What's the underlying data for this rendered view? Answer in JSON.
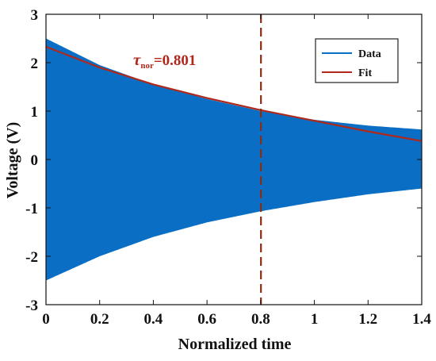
{
  "chart_data": {
    "type": "line",
    "title": "",
    "xlabel": "Normalized time",
    "ylabel": "Voltage (V)",
    "xlim": [
      0,
      1.4
    ],
    "ylim": [
      -3,
      3
    ],
    "x_ticks": [
      "0",
      "0.2",
      "0.4",
      "0.6",
      "0.8",
      "1",
      "1.2",
      "1.4"
    ],
    "y_ticks": [
      "-3",
      "-2",
      "-1",
      "0",
      "1",
      "2",
      "3"
    ],
    "grid": false,
    "legend_position": "top-right",
    "series": [
      {
        "name": "Data",
        "kind": "oscillating envelope",
        "color": "#0a6fc4",
        "x": [
          0,
          0.2,
          0.4,
          0.6,
          0.8,
          1.0,
          1.2,
          1.4
        ],
        "upper": [
          2.5,
          1.95,
          1.55,
          1.25,
          1.0,
          0.82,
          0.7,
          0.62
        ],
        "lower": [
          -2.5,
          -2.0,
          -1.6,
          -1.3,
          -1.07,
          -0.88,
          -0.72,
          -0.6
        ]
      },
      {
        "name": "Fit",
        "kind": "line",
        "color": "#b0281c",
        "x": [
          0,
          0.2,
          0.4,
          0.6,
          0.8,
          1.0,
          1.2,
          1.4
        ],
        "y": [
          2.33,
          1.9,
          1.55,
          1.27,
          1.02,
          0.8,
          0.58,
          0.38
        ]
      }
    ],
    "marker": {
      "x": 0.801,
      "color": "#8b2d12",
      "style": "dashed"
    },
    "annotation": {
      "symbol": "τ",
      "subscript": "nor",
      "value": "=0.801",
      "color": "#b0281c"
    }
  }
}
